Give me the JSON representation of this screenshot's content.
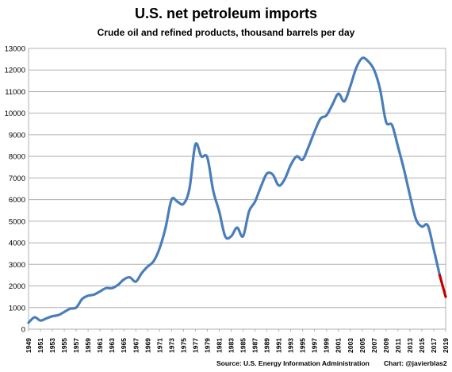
{
  "chart_data": {
    "type": "line",
    "title": "U.S. net petroleum imports",
    "subtitle": "Crude oil and refined products, thousand barrels per day",
    "source": "Source:   U.S.  Energy Information  Administration",
    "credit": "Chart: @javierblas2",
    "ylim": [
      0,
      13000
    ],
    "ytick_step": 1000,
    "grid": true,
    "x_tick_labels": [
      "1949",
      "1951",
      "1953",
      "1955",
      "1957",
      "1959",
      "1961",
      "1963",
      "1965",
      "1967",
      "1969",
      "1971",
      "1973",
      "1975",
      "1977",
      "1979",
      "1981",
      "1983",
      "1985",
      "1987",
      "1989",
      "1991",
      "1993",
      "1995",
      "1997",
      "1999",
      "2001",
      "2003",
      "2005",
      "2007",
      "2009",
      "2011",
      "2013",
      "2015",
      "2017",
      "2019"
    ],
    "series": [
      {
        "color": "#4a7ebb",
        "x": [
          1949,
          1950,
          1951,
          1952,
          1953,
          1954,
          1955,
          1956,
          1957,
          1958,
          1959,
          1960,
          1961,
          1962,
          1963,
          1964,
          1965,
          1966,
          1967,
          1968,
          1969,
          1970,
          1971,
          1972,
          1973,
          1974,
          1975,
          1976,
          1977,
          1978,
          1979,
          1980,
          1981,
          1982,
          1983,
          1984,
          1985,
          1986,
          1987,
          1988,
          1989,
          1990,
          1991,
          1992,
          1993,
          1994,
          1995,
          1996,
          1997,
          1998,
          1999,
          2000,
          2001,
          2002,
          2003,
          2004,
          2005,
          2006,
          2007,
          2008,
          2009,
          2010,
          2011,
          2012,
          2013,
          2014,
          2015,
          2016,
          2017,
          2018
        ],
        "values": [
          300,
          550,
          400,
          500,
          600,
          650,
          800,
          950,
          1000,
          1400,
          1550,
          1600,
          1750,
          1900,
          1900,
          2050,
          2300,
          2400,
          2200,
          2600,
          2900,
          3150,
          3750,
          4700,
          6000,
          5900,
          5800,
          6500,
          8550,
          8000,
          7950,
          6400,
          5450,
          4300,
          4300,
          4700,
          4300,
          5450,
          5900,
          6600,
          7200,
          7150,
          6650,
          6950,
          7600,
          8000,
          7850,
          8450,
          9150,
          9750,
          9900,
          10400,
          10900,
          10550,
          11250,
          12100,
          12550,
          12400,
          12000,
          11100,
          9600,
          9450,
          8450,
          7400,
          6200,
          5100,
          4750,
          4800,
          3700,
          2500
        ]
      },
      {
        "color": "#c00000",
        "x": [
          2018,
          2019
        ],
        "values": [
          2500,
          1500
        ]
      }
    ]
  }
}
